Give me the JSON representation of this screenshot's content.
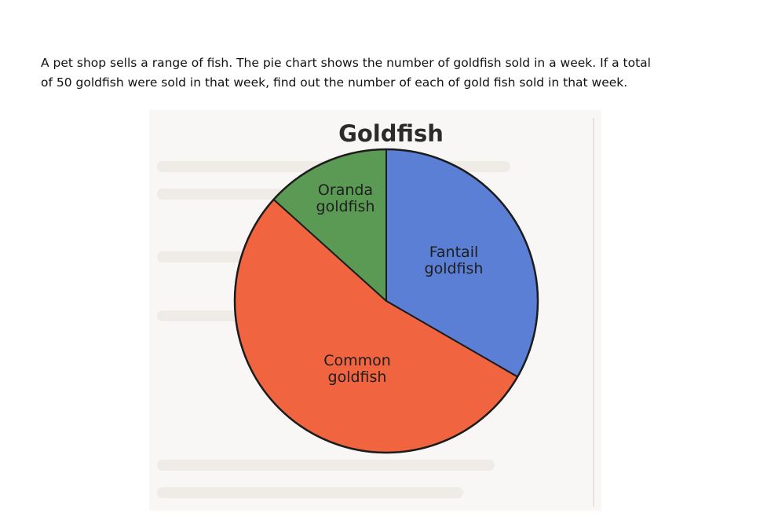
{
  "question": {
    "line1": "A pet shop sells a range of fish. The pie chart shows the number of goldfish sold in a week.  If a total",
    "line2": "of 50 goldfish were sold in that week, find out the number of each of gold fish sold in that week."
  },
  "chart_data": {
    "type": "pie",
    "title": "Goldfish",
    "slices": [
      {
        "label": [
          "Fantail",
          "goldfish"
        ],
        "value": 120,
        "color": "#5b7fd4"
      },
      {
        "label": [
          "Common",
          "goldfish"
        ],
        "value": 192,
        "color": "#f0643f"
      },
      {
        "label": [
          "Oranda",
          "goldfish"
        ],
        "value": 48,
        "color": "#5b9a55"
      }
    ],
    "total": 360,
    "start_angle": 0,
    "direction": "clockwise"
  }
}
